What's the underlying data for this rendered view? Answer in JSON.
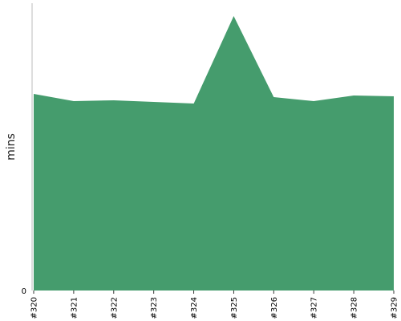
{
  "chart_data": {
    "type": "area",
    "ylabel": "mins",
    "categories": [
      "#320",
      "#321",
      "#322",
      "#323",
      "#324",
      "#325",
      "#326",
      "#327",
      "#328",
      "#329"
    ],
    "series": [
      {
        "values": [
          245,
          236,
          237,
          235,
          233,
          342,
          241,
          236,
          243,
          242
        ]
      }
    ],
    "y_tick_labels": [
      "0"
    ],
    "ylim": [
      0,
      358
    ],
    "grid": false,
    "colors": {
      "area": "#459c6d",
      "axis": "#bbbbbb"
    }
  }
}
